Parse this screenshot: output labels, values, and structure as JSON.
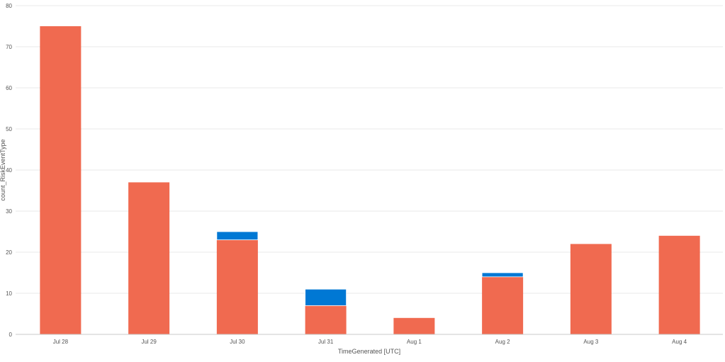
{
  "chart_data": {
    "type": "bar",
    "stacked": true,
    "xlabel": "TimeGenerated [UTC]",
    "ylabel": "count_RiskEventType",
    "ylim": [
      0,
      80
    ],
    "yticks": [
      0,
      10,
      20,
      30,
      40,
      50,
      60,
      70,
      80
    ],
    "grid": true,
    "legend": "none",
    "categories": [
      "Jul 28",
      "Jul 29",
      "Jul 30",
      "Jul 31",
      "Aug 1",
      "Aug 2",
      "Aug 3",
      "Aug 4"
    ],
    "series": [
      {
        "color": "#f06a50",
        "values": [
          75,
          37,
          23,
          7,
          4,
          14,
          22,
          24
        ]
      },
      {
        "color": "#0078d4",
        "values": [
          0,
          0,
          2,
          4,
          0,
          1,
          0,
          0
        ]
      }
    ]
  }
}
